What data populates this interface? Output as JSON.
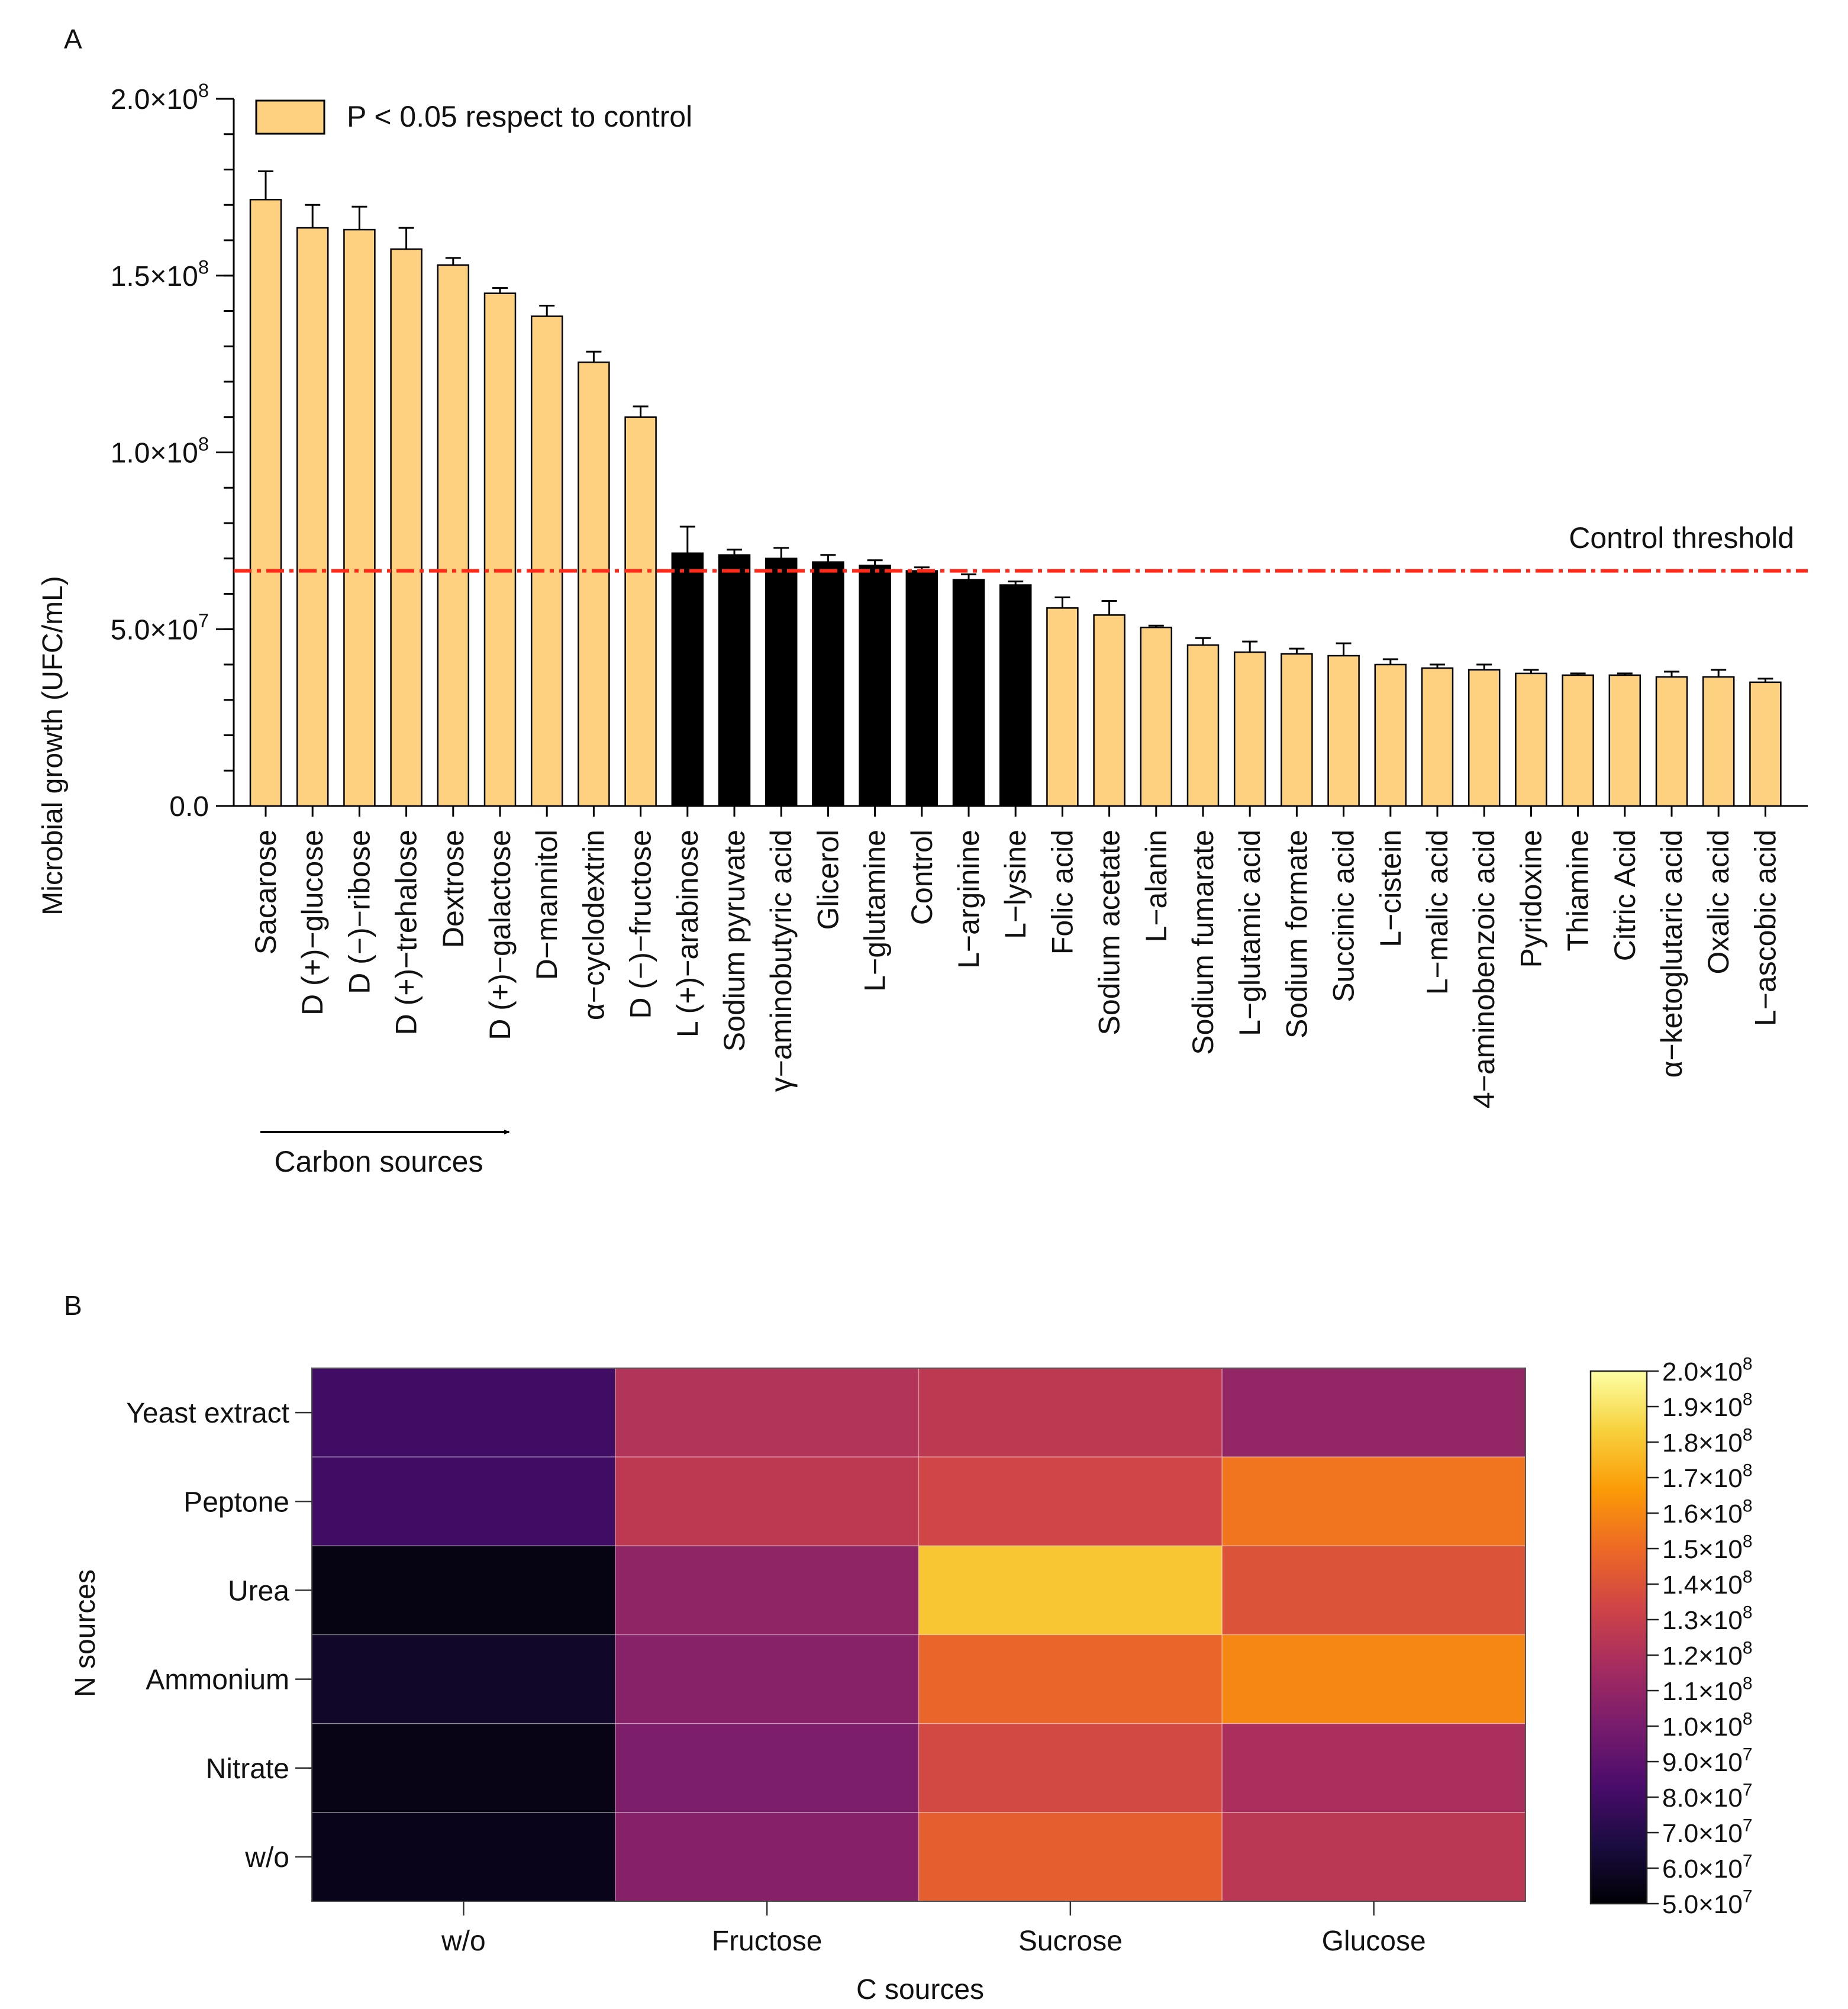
{
  "panelA": {
    "panel_label": "A",
    "legend_label": "P < 0.05 respect to control",
    "threshold_label": "Control threshold",
    "arrow_label": "Carbon sources",
    "colors": {
      "significant": "#FDD17F",
      "nonsignificant": "#000000",
      "threshold": "#FF2A1A"
    }
  },
  "panelB": {
    "panel_label": "B"
  },
  "chart_data": [
    {
      "type": "bar",
      "title": "",
      "xlabel": "",
      "ylabel": "Microbial growth (UFC/mL)",
      "ylim": [
        0,
        200000000
      ],
      "y_ticks": [
        {
          "value": 0,
          "mantissa": "0.0",
          "exp": ""
        },
        {
          "value": 50000000,
          "mantissa": "5.0×10",
          "exp": "7"
        },
        {
          "value": 100000000,
          "mantissa": "1.0×10",
          "exp": "8"
        },
        {
          "value": 150000000,
          "mantissa": "1.5×10",
          "exp": "8"
        },
        {
          "value": 200000000,
          "mantissa": "2.0×10",
          "exp": "8"
        }
      ],
      "threshold": 66500000,
      "categories": [
        "Sacarose",
        "D (+)−glucose",
        "D (−)−ribose",
        "D (+)−trehalose",
        "Dextrose",
        "D (+)−galactose",
        "D−mannitol",
        "α−cyclodextrin",
        "D (−)−fructose",
        "L (+)−arabinose",
        "Sodium pyruvate",
        "γ−aminobutyric acid",
        "Glicerol",
        "L−glutamine",
        "Control",
        "L−arginine",
        "L−lysine",
        "Folic acid",
        "Sodium acetate",
        "L−alanin",
        "Sodium fumarate",
        "L−glutamic acid",
        "Sodium formate",
        "Succinic acid",
        "L−cistein",
        "L−malic acid",
        "4−aminobenzoic acid",
        "Pyridoxine",
        "Thiamine",
        "Citric Acid",
        "α−ketoglutaric acid",
        "Oxalic acid",
        "L−ascobic acid"
      ],
      "values": [
        171500000,
        163500000,
        163000000,
        157500000,
        153000000,
        145000000,
        138500000,
        125500000,
        110000000,
        71500000,
        71000000,
        70000000,
        69000000,
        68000000,
        66500000,
        64000000,
        62500000,
        56000000,
        54000000,
        50500000,
        45500000,
        43500000,
        43000000,
        42500000,
        40000000,
        39000000,
        38500000,
        37500000,
        37000000,
        37000000,
        36500000,
        36500000,
        35000000
      ],
      "errors": [
        8000000,
        6500000,
        6500000,
        6000000,
        2000000,
        1500000,
        3000000,
        3000000,
        3000000,
        7500000,
        1500000,
        3000000,
        2000000,
        1500000,
        1000000,
        1500000,
        1000000,
        3000000,
        4000000,
        500000,
        2000000,
        3000000,
        1500000,
        3500000,
        1500000,
        1000000,
        1500000,
        1000000,
        500000,
        500000,
        1500000,
        2000000,
        1000000
      ],
      "significant": [
        true,
        true,
        true,
        true,
        true,
        true,
        true,
        true,
        true,
        false,
        false,
        false,
        false,
        false,
        false,
        false,
        false,
        true,
        true,
        true,
        true,
        true,
        true,
        true,
        true,
        true,
        true,
        true,
        true,
        true,
        true,
        true,
        true
      ]
    },
    {
      "type": "heatmap",
      "title": "",
      "xlabel": "C sources",
      "ylabel": "N sources",
      "x": [
        "w/o",
        "Fructose",
        "Sucrose",
        "Glucose"
      ],
      "y": [
        "Yeast extract",
        "Peptone",
        "Urea",
        "Ammonium",
        "Nitrate",
        "w/o"
      ],
      "values": [
        [
          80000000,
          122000000,
          126000000,
          110000000
        ],
        [
          80000000,
          126000000,
          134000000,
          154000000
        ],
        [
          54000000,
          109000000,
          180000000,
          140000000
        ],
        [
          60000000,
          106000000,
          148000000,
          160000000
        ],
        [
          55000000,
          102000000,
          135000000,
          119000000
        ],
        [
          56000000,
          105000000,
          145000000,
          125000000
        ]
      ],
      "colorbar": {
        "min": 50000000,
        "max": 200000000,
        "stops": [
          "#000004",
          "#1B0C41",
          "#4A0C6B",
          "#781C6D",
          "#A52C60",
          "#CF4446",
          "#ED6925",
          "#FB9B06",
          "#F7D13D",
          "#FCFFA4"
        ],
        "ticks": [
          {
            "value": 200000000,
            "mantissa": "2.0×10",
            "exp": "8"
          },
          {
            "value": 190000000,
            "mantissa": "1.9×10",
            "exp": "8"
          },
          {
            "value": 180000000,
            "mantissa": "1.8×10",
            "exp": "8"
          },
          {
            "value": 170000000,
            "mantissa": "1.7×10",
            "exp": "8"
          },
          {
            "value": 160000000,
            "mantissa": "1.6×10",
            "exp": "8"
          },
          {
            "value": 150000000,
            "mantissa": "1.5×10",
            "exp": "8"
          },
          {
            "value": 140000000,
            "mantissa": "1.4×10",
            "exp": "8"
          },
          {
            "value": 130000000,
            "mantissa": "1.3×10",
            "exp": "8"
          },
          {
            "value": 120000000,
            "mantissa": "1.2×10",
            "exp": "8"
          },
          {
            "value": 110000000,
            "mantissa": "1.1×10",
            "exp": "8"
          },
          {
            "value": 100000000,
            "mantissa": "1.0×10",
            "exp": "8"
          },
          {
            "value": 90000000,
            "mantissa": "9.0×10",
            "exp": "7"
          },
          {
            "value": 80000000,
            "mantissa": "8.0×10",
            "exp": "7"
          },
          {
            "value": 70000000,
            "mantissa": "7.0×10",
            "exp": "7"
          },
          {
            "value": 60000000,
            "mantissa": "6.0×10",
            "exp": "7"
          },
          {
            "value": 50000000,
            "mantissa": "5.0×10",
            "exp": "7"
          }
        ]
      }
    }
  ]
}
